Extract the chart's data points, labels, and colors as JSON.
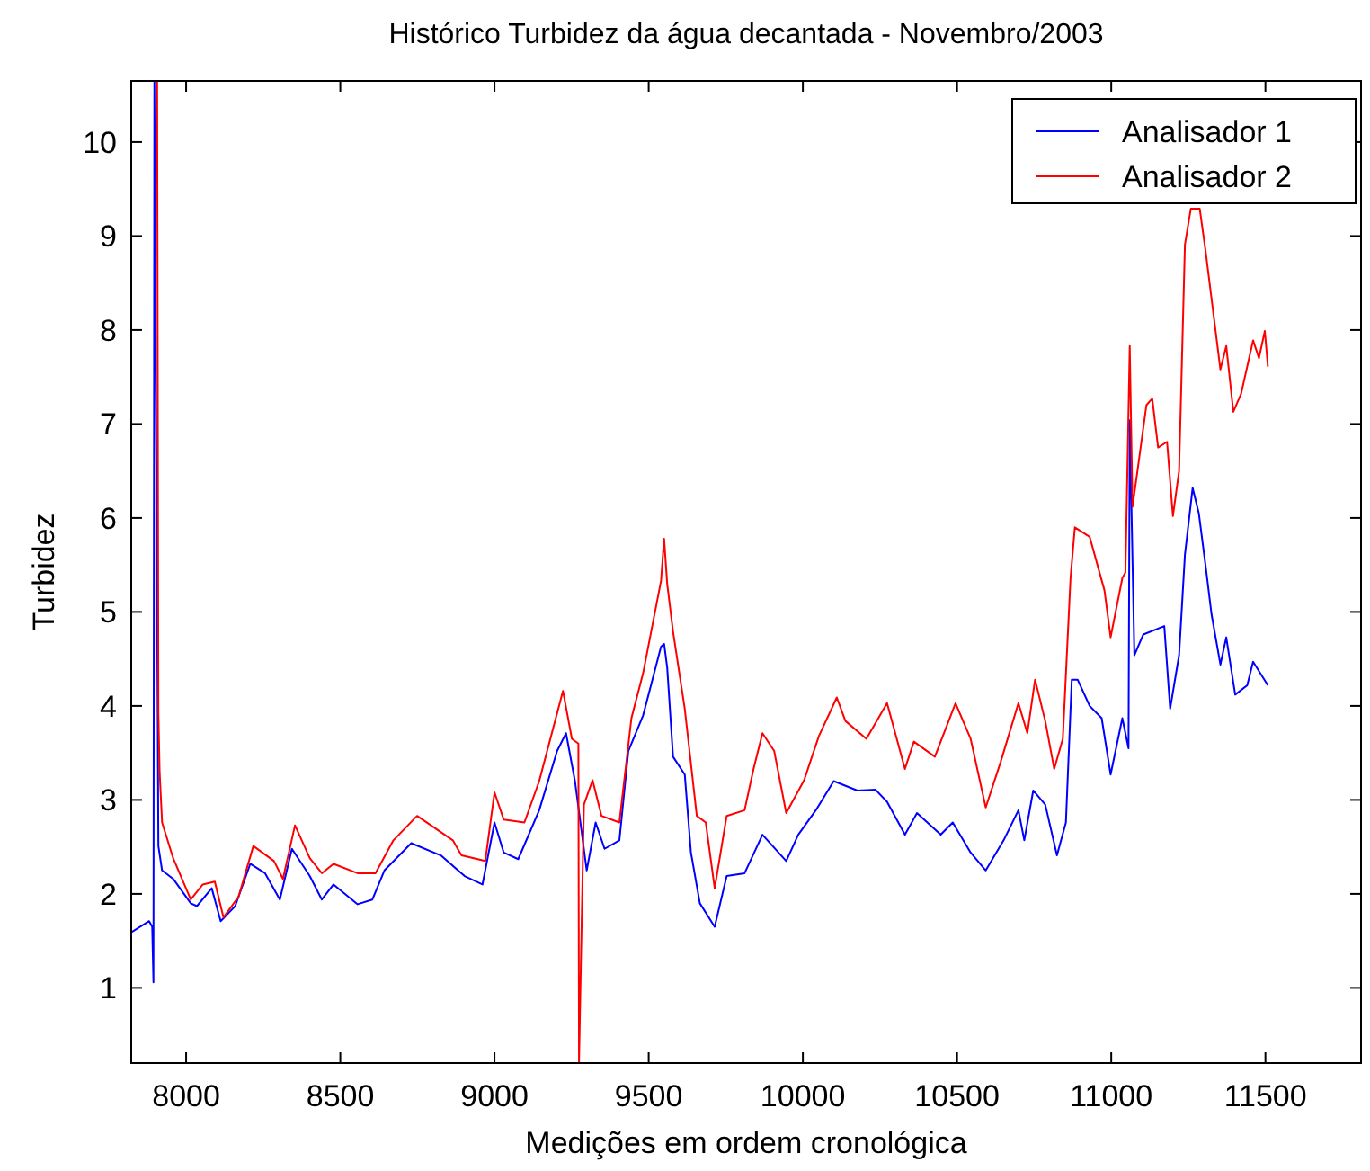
{
  "chart_data": {
    "type": "line",
    "title": "Histórico Turbidez da água decantada - Novembro/2003",
    "xlabel": "Medições em ordem cronológica",
    "ylabel": "Turbidez",
    "xlim": [
      7822,
      11810
    ],
    "ylim": [
      0.2,
      10.65
    ],
    "xticks": [
      8000,
      8500,
      9000,
      9500,
      10000,
      10500,
      11000,
      11500
    ],
    "yticks": [
      1,
      2,
      3,
      4,
      5,
      6,
      7,
      8,
      9,
      10
    ],
    "grid": false,
    "legend": "top right",
    "line_style": "solid",
    "series": [
      {
        "name": "Analisador 1",
        "color": "#0000ff",
        "x": [
          7822,
          7880,
          7890,
          7894,
          7897,
          7910,
          7922,
          7958,
          8015,
          8035,
          8083,
          8112,
          8159,
          8208,
          8256,
          8304,
          8343,
          8401,
          8440,
          8478,
          8556,
          8604,
          8643,
          8730,
          8826,
          8903,
          8961,
          9000,
          9030,
          9077,
          9145,
          9203,
          9232,
          9261,
          9299,
          9328,
          9357,
          9405,
          9434,
          9482,
          9540,
          9550,
          9560,
          9579,
          9617,
          9637,
          9666,
          9714,
          9753,
          9811,
          9869,
          9946,
          9985,
          10042,
          10100,
          10177,
          10235,
          10273,
          10331,
          10370,
          10447,
          10486,
          10544,
          10593,
          10651,
          10699,
          10718,
          10747,
          10786,
          10824,
          10853,
          10872,
          10891,
          10930,
          10969,
          10998,
          11036,
          11056,
          11060,
          11075,
          11104,
          11172,
          11191,
          11220,
          11239,
          11264,
          11284,
          11306,
          11325,
          11354,
          11373,
          11402,
          11441,
          11460,
          11508
        ],
        "values": [
          1.59,
          1.71,
          1.65,
          1.06,
          10.65,
          2.51,
          2.25,
          2.16,
          1.9,
          1.87,
          2.06,
          1.71,
          1.87,
          2.32,
          2.22,
          1.94,
          2.48,
          2.19,
          1.94,
          2.1,
          1.89,
          1.94,
          2.25,
          2.54,
          2.41,
          2.19,
          2.1,
          2.76,
          2.44,
          2.37,
          2.89,
          3.52,
          3.71,
          3.2,
          2.25,
          2.76,
          2.48,
          2.57,
          3.52,
          3.9,
          4.63,
          4.66,
          4.41,
          3.46,
          3.27,
          2.44,
          1.9,
          1.65,
          2.19,
          2.22,
          2.63,
          2.35,
          2.63,
          2.89,
          3.2,
          3.1,
          3.11,
          2.98,
          2.63,
          2.86,
          2.63,
          2.76,
          2.44,
          2.25,
          2.57,
          2.89,
          2.57,
          3.1,
          2.95,
          2.41,
          2.76,
          4.28,
          4.28,
          4.0,
          3.87,
          3.27,
          3.87,
          3.55,
          7.04,
          4.54,
          4.76,
          4.85,
          3.97,
          4.54,
          5.61,
          6.32,
          6.05,
          5.49,
          4.98,
          4.44,
          4.73,
          4.12,
          4.22,
          4.47,
          4.22
        ]
      },
      {
        "name": "Analisador 2",
        "color": "#ff0000",
        "x": [
          7906,
          7910,
          7914,
          7922,
          7958,
          8015,
          8054,
          8093,
          8121,
          8170,
          8218,
          8285,
          8314,
          8353,
          8401,
          8440,
          8478,
          8556,
          8614,
          8672,
          8749,
          8865,
          8893,
          8970,
          9000,
          9030,
          9097,
          9145,
          9222,
          9251,
          9272,
          9274,
          9290,
          9318,
          9347,
          9405,
          9444,
          9482,
          9540,
          9550,
          9560,
          9579,
          9617,
          9656,
          9685,
          9714,
          9753,
          9811,
          9840,
          9869,
          9907,
          9946,
          10004,
          10052,
          10110,
          10138,
          10206,
          10273,
          10331,
          10360,
          10428,
          10495,
          10544,
          10593,
          10641,
          10699,
          10728,
          10753,
          10786,
          10815,
          10843,
          10868,
          10882,
          10930,
          10978,
          10998,
          11036,
          11046,
          11060,
          11069,
          11085,
          11114,
          11133,
          11152,
          11181,
          11200,
          11220,
          11239,
          11258,
          11287,
          11306,
          11325,
          11354,
          11373,
          11396,
          11421,
          11460,
          11479,
          11498,
          11508
        ],
        "values": [
          10.65,
          3.93,
          3.3,
          2.76,
          2.38,
          1.94,
          2.1,
          2.13,
          1.75,
          1.97,
          2.51,
          2.35,
          2.16,
          2.73,
          2.38,
          2.22,
          2.32,
          2.22,
          2.22,
          2.57,
          2.83,
          2.57,
          2.41,
          2.35,
          3.08,
          2.79,
          2.76,
          3.2,
          4.16,
          3.65,
          3.6,
          0.2,
          2.95,
          3.21,
          2.83,
          2.76,
          3.87,
          4.35,
          5.33,
          5.78,
          5.3,
          4.79,
          3.97,
          2.83,
          2.76,
          2.06,
          2.83,
          2.89,
          3.33,
          3.71,
          3.52,
          2.86,
          3.21,
          3.68,
          4.09,
          3.84,
          3.65,
          4.03,
          3.33,
          3.62,
          3.46,
          4.03,
          3.65,
          2.92,
          3.4,
          4.03,
          3.71,
          4.28,
          3.84,
          3.33,
          3.65,
          5.36,
          5.9,
          5.8,
          5.23,
          4.73,
          5.36,
          5.42,
          7.83,
          6.12,
          6.5,
          7.2,
          7.27,
          6.75,
          6.81,
          6.02,
          6.5,
          8.91,
          9.29,
          9.29,
          8.84,
          8.34,
          7.58,
          7.83,
          7.13,
          7.32,
          7.89,
          7.7,
          7.99,
          7.61
        ]
      }
    ]
  }
}
